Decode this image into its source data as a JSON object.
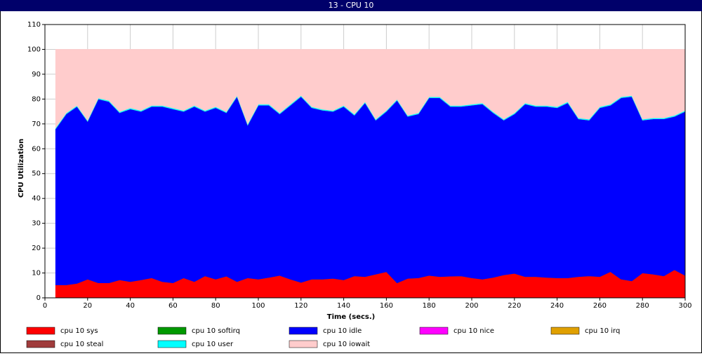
{
  "chart_data": {
    "type": "stacked-area",
    "title": "13 - CPU 10",
    "xlabel": "Time (secs.)",
    "ylabel": "CPU Utilization",
    "x": [
      5,
      10,
      15,
      20,
      25,
      30,
      35,
      40,
      45,
      50,
      55,
      60,
      65,
      70,
      75,
      80,
      85,
      90,
      95,
      100,
      105,
      110,
      115,
      120,
      125,
      130,
      135,
      140,
      145,
      150,
      155,
      160,
      165,
      170,
      175,
      180,
      185,
      190,
      195,
      200,
      205,
      210,
      215,
      220,
      225,
      230,
      235,
      240,
      245,
      250,
      255,
      260,
      265,
      270,
      275,
      280,
      285,
      290,
      295,
      300
    ],
    "xlim": [
      0,
      300
    ],
    "ylim": [
      0,
      110
    ],
    "xticks": [
      0,
      20,
      40,
      60,
      80,
      100,
      120,
      140,
      160,
      180,
      200,
      220,
      240,
      260,
      280,
      300
    ],
    "yticks": [
      0,
      10,
      20,
      30,
      40,
      50,
      60,
      70,
      80,
      90,
      100,
      110
    ],
    "grid": true,
    "series": [
      {
        "name": "cpu 10 sys",
        "color": "#ff0000",
        "values": [
          5.2,
          5.2,
          5.8,
          7.5,
          6,
          6,
          7.2,
          6.5,
          7.2,
          8,
          6.5,
          6,
          8,
          6.5,
          8.8,
          7.5,
          8.7,
          6.5,
          8,
          7.5,
          8.2,
          9,
          7.5,
          6.2,
          7.5,
          7.5,
          7.8,
          7.2,
          8.8,
          8.5,
          9.5,
          10.5,
          6,
          7.8,
          8,
          9,
          8.5,
          8.7,
          8.8,
          8,
          7.5,
          8.2,
          9.2,
          9.8,
          8.5,
          8.5,
          8.2,
          8,
          8,
          8.5,
          8.8,
          8.5,
          10.5,
          7.5,
          6.8,
          10,
          9.5,
          8.8,
          11.3,
          9
        ]
      },
      {
        "name": "cpu 10 softirq",
        "color": "#009900",
        "values": [
          0,
          0,
          0,
          0,
          0,
          0,
          0,
          0,
          0,
          0,
          0,
          0,
          0,
          0,
          0,
          0,
          0,
          0,
          0,
          0,
          0,
          0,
          0,
          0,
          0,
          0,
          0,
          0,
          0,
          0,
          0,
          0,
          0,
          0,
          0,
          0,
          0,
          0,
          0,
          0,
          0,
          0,
          0,
          0,
          0,
          0,
          0,
          0,
          0,
          0,
          0,
          0,
          0,
          0,
          0,
          0,
          0,
          0,
          0,
          0
        ]
      },
      {
        "name": "cpu 10 idle",
        "color": "#0000ff",
        "values": [
          62.8,
          68.8,
          71.2,
          63.5,
          74,
          73,
          67.3,
          69.5,
          67.8,
          69,
          70.5,
          70,
          67,
          70.5,
          66.2,
          69,
          65.8,
          74.5,
          61.5,
          70,
          69.3,
          65,
          70,
          74.8,
          69,
          68,
          67.2,
          69.8,
          64.7,
          70,
          62,
          64.5,
          73.5,
          65.2,
          66,
          71.5,
          72,
          68.3,
          68.2,
          69.5,
          70.5,
          66.3,
          62.3,
          64.2,
          69.5,
          68.5,
          68.8,
          68.5,
          70.5,
          63.5,
          62.7,
          68,
          67,
          73,
          74.2,
          61.5,
          62.5,
          63.2,
          61.7,
          66
        ]
      },
      {
        "name": "cpu 10 nice",
        "color": "#ff00ff",
        "values": [
          0,
          0,
          0,
          0,
          0,
          0,
          0,
          0,
          0,
          0,
          0,
          0,
          0,
          0,
          0,
          0,
          0,
          0,
          0,
          0,
          0,
          0,
          0,
          0,
          0,
          0,
          0,
          0,
          0,
          0,
          0,
          0,
          0,
          0,
          0,
          0,
          0,
          0,
          0,
          0,
          0,
          0,
          0,
          0,
          0,
          0,
          0,
          0,
          0,
          0,
          0,
          0,
          0,
          0,
          0,
          0,
          0,
          0,
          0,
          0
        ]
      },
      {
        "name": "cpu 10 irq",
        "color": "#e0a000",
        "values": [
          0,
          0,
          0,
          0,
          0,
          0,
          0,
          0,
          0,
          0,
          0,
          0,
          0,
          0,
          0,
          0,
          0,
          0,
          0,
          0,
          0,
          0,
          0,
          0,
          0,
          0,
          0,
          0,
          0,
          0,
          0,
          0,
          0,
          0,
          0,
          0,
          0,
          0,
          0,
          0,
          0,
          0,
          0,
          0,
          0,
          0,
          0,
          0,
          0,
          0,
          0,
          0,
          0,
          0,
          0,
          0,
          0,
          0,
          0,
          0
        ]
      },
      {
        "name": "cpu 10 steal",
        "color": "#a03c3c",
        "values": [
          0,
          0,
          0,
          0,
          0,
          0,
          0,
          0,
          0,
          0,
          0,
          0,
          0,
          0,
          0,
          0,
          0,
          0,
          0,
          0,
          0,
          0,
          0,
          0,
          0,
          0,
          0,
          0,
          0,
          0,
          0,
          0,
          0,
          0,
          0,
          0,
          0,
          0,
          0,
          0,
          0,
          0,
          0,
          0,
          0,
          0,
          0,
          0,
          0,
          0,
          0,
          0,
          0,
          0,
          0,
          0,
          0,
          0,
          0,
          0
        ]
      },
      {
        "name": "cpu 10 user",
        "color": "#00ffff",
        "values": [
          0.4,
          0.4,
          0.4,
          0.4,
          0.4,
          0.4,
          0.4,
          0.4,
          0.4,
          0.4,
          0.4,
          0.4,
          0.4,
          0.4,
          0.4,
          0.4,
          0.4,
          0.4,
          0.4,
          0.4,
          0.4,
          0.4,
          0.4,
          0.4,
          0.4,
          0.4,
          0.4,
          0.4,
          0.4,
          0.4,
          0.4,
          0.4,
          0.4,
          0.4,
          0.4,
          0.4,
          0.4,
          0.4,
          0.4,
          0.4,
          0.4,
          0.4,
          0.4,
          0.4,
          0.4,
          0.4,
          0.4,
          0.4,
          0.4,
          0.4,
          0.4,
          0.4,
          0.4,
          0.4,
          0.4,
          0.4,
          0.4,
          0.4,
          0.4,
          0.4
        ]
      },
      {
        "name": "cpu 10 iowait",
        "color": "#ffcccc",
        "values": [
          31.6,
          25.6,
          22.6,
          28.6,
          19.6,
          20.6,
          25.1,
          23.6,
          24.6,
          22.6,
          22.6,
          23.6,
          24.6,
          22.6,
          24.6,
          23.1,
          25.1,
          18.6,
          30.1,
          22.1,
          22.1,
          25.6,
          22.1,
          18.6,
          23.1,
          24.1,
          24.6,
          22.6,
          26.1,
          21.1,
          28.1,
          24.6,
          20.1,
          26.6,
          25.6,
          19.1,
          19.1,
          22.6,
          22.6,
          22.1,
          21.6,
          25.1,
          28.1,
          25.6,
          21.6,
          22.6,
          22.6,
          23.1,
          21.1,
          27.6,
          28.1,
          23.1,
          22.1,
          19.1,
          18.6,
          28.1,
          27.6,
          27.6,
          26.6,
          24.6
        ]
      }
    ]
  }
}
